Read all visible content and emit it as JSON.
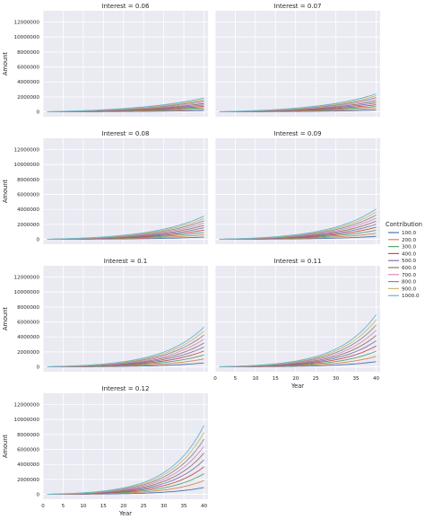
{
  "chart_data": {
    "type": "line",
    "facet_variable": "Interest",
    "facet_title_template": "Interest = {v}",
    "facets": [
      "0.06",
      "0.07",
      "0.08",
      "0.09",
      "0.1",
      "0.11",
      "0.12"
    ],
    "facet_rates": [
      0.06,
      0.07,
      0.08,
      0.09,
      0.1,
      0.11,
      0.12
    ],
    "xlabel": "Year",
    "ylabel": "Amount",
    "x": [
      1,
      2,
      3,
      4,
      5,
      6,
      7,
      8,
      9,
      10,
      11,
      12,
      13,
      14,
      15,
      16,
      17,
      18,
      19,
      20,
      21,
      22,
      23,
      24,
      25,
      26,
      27,
      28,
      29,
      30,
      31,
      32,
      33,
      34,
      35,
      36,
      37,
      38,
      39,
      40
    ],
    "xlim": [
      0,
      41
    ],
    "ylim": [
      -650000,
      13500000
    ],
    "x_ticks": [
      0,
      5,
      10,
      15,
      20,
      25,
      30,
      35,
      40
    ],
    "x_tick_labels": [
      "0",
      "5",
      "10",
      "15",
      "20",
      "25",
      "30",
      "35",
      "40"
    ],
    "y_ticks": [
      0,
      2000000,
      4000000,
      6000000,
      8000000,
      10000000,
      12000000
    ],
    "y_tick_labels": [
      "0",
      "2000000",
      "4000000",
      "6000000",
      "8000000",
      "10000000",
      "12000000"
    ],
    "series_rule": "Amount(year) = Contribution × 12 × ((1+r)^year − 1) / r, r = Interest",
    "legend": {
      "title": "Contribution",
      "placement": "right",
      "entries": [
        "100.0",
        "200.0",
        "300.0",
        "400.0",
        "500.0",
        "600.0",
        "700.0",
        "800.0",
        "900.0",
        "1000.0"
      ]
    },
    "contributions": [
      100,
      200,
      300,
      400,
      500,
      600,
      700,
      800,
      900,
      1000
    ],
    "colors": [
      "#4c72b0",
      "#dd8452",
      "#55a868",
      "#c44e52",
      "#8172b3",
      "#937860",
      "#da8bc3",
      "#8c8c8c",
      "#ccb974",
      "#64b5cd"
    ],
    "grid": true,
    "background": "#eaeaf2"
  }
}
